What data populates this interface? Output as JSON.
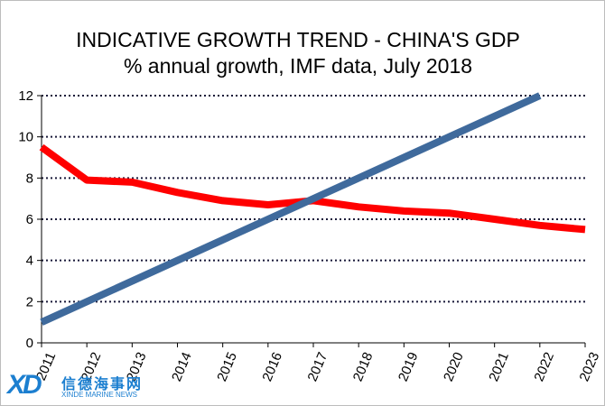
{
  "chart_data": {
    "type": "line",
    "title": "INDICATIVE GROWTH TREND - CHINA'S GDP",
    "subtitle": "% annual growth, IMF data, July 2018",
    "xlabel": "",
    "ylabel": "",
    "ylim": [
      0,
      12
    ],
    "yticks": [
      "0",
      "2",
      "4",
      "6",
      "8",
      "10",
      "12"
    ],
    "x": [
      "2011",
      "2012",
      "2013",
      "2014",
      "2015",
      "2016",
      "2017",
      "2018",
      "2019",
      "2020",
      "2021",
      "2022",
      "2023"
    ],
    "grid": true,
    "legend": "none",
    "series": [
      {
        "color": "#ff0000",
        "points": [
          {
            "x": "2011",
            "y": 9.5
          },
          {
            "x": "2012",
            "y": 7.9
          },
          {
            "x": "2013",
            "y": 7.8
          },
          {
            "x": "2014",
            "y": 7.3
          },
          {
            "x": "2015",
            "y": 6.9
          },
          {
            "x": "2016",
            "y": 6.7
          },
          {
            "x": "2017",
            "y": 6.9
          },
          {
            "x": "2018",
            "y": 6.6
          },
          {
            "x": "2019",
            "y": 6.4
          },
          {
            "x": "2020",
            "y": 6.3
          },
          {
            "x": "2021",
            "y": 6.0
          },
          {
            "x": "2022",
            "y": 5.7
          },
          {
            "x": "2023",
            "y": 5.5
          }
        ]
      },
      {
        "color": "#3f6a9c",
        "points": [
          {
            "x": "2011",
            "y": 1
          },
          {
            "x": "2022",
            "y": 12
          }
        ]
      }
    ]
  },
  "watermark": {
    "mark": "XD",
    "name_cn": "信德海事网",
    "name_en": "XINDE MARINE NEWS"
  }
}
